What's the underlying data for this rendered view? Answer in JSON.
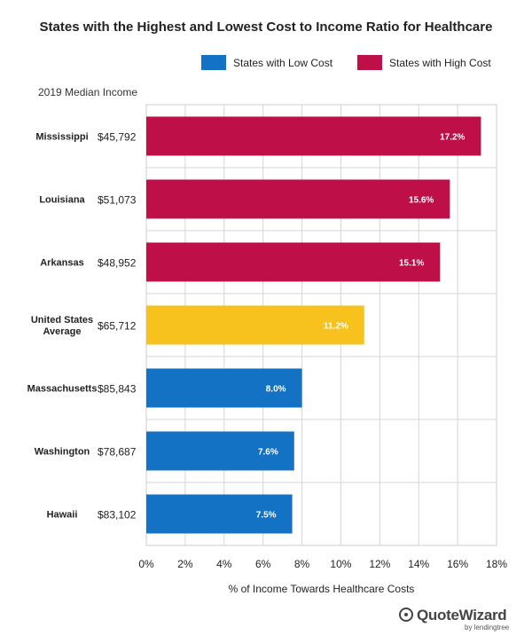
{
  "chart_data": {
    "type": "bar",
    "orientation": "horizontal",
    "title": "States with the Highest and Lowest Cost to Income Ratio for Healthcare",
    "xlabel": "% of Income Towards Healthcare Costs",
    "ylabel": "",
    "xlim": [
      0,
      18
    ],
    "x_ticks": [
      "0%",
      "2%",
      "4%",
      "6%",
      "8%",
      "10%",
      "12%",
      "14%",
      "16%",
      "18%"
    ],
    "grid": true,
    "legend_position": "top-right",
    "legend": [
      {
        "label": "States with Low Cost",
        "color": "#1472c4"
      },
      {
        "label": "States with High Cost",
        "color": "#be0f48"
      }
    ],
    "income_header": "2019 Median Income",
    "categories": [
      "Mississippi",
      "Louisiana",
      "Arkansas",
      "United States Average",
      "Massachusetts",
      "Washington",
      "Hawaii"
    ],
    "category_lines": [
      [
        "Mississippi"
      ],
      [
        "Louisiana"
      ],
      [
        "Arkansas"
      ],
      [
        "United States",
        "Average"
      ],
      [
        "Massachusetts"
      ],
      [
        "Washington"
      ],
      [
        "Hawaii"
      ]
    ],
    "incomes": [
      "$45,792",
      "$51,073",
      "$48,952",
      "$65,712",
      "$85,843",
      "$78,687",
      "$83,102"
    ],
    "values": [
      17.2,
      15.6,
      15.1,
      11.2,
      8.0,
      7.6,
      7.5
    ],
    "value_labels": [
      "17.2%",
      "15.6%",
      "15.1%",
      "11.2%",
      "8.0%",
      "7.6%",
      "7.5%"
    ],
    "groups": [
      "high",
      "high",
      "high",
      "average",
      "low",
      "low",
      "low"
    ],
    "colors": {
      "high": "#be0f48",
      "average": "#f7c21e",
      "low": "#1472c4"
    }
  },
  "branding": {
    "logo_text": "QuoteWizard",
    "logo_sub": "by lendingtree"
  }
}
